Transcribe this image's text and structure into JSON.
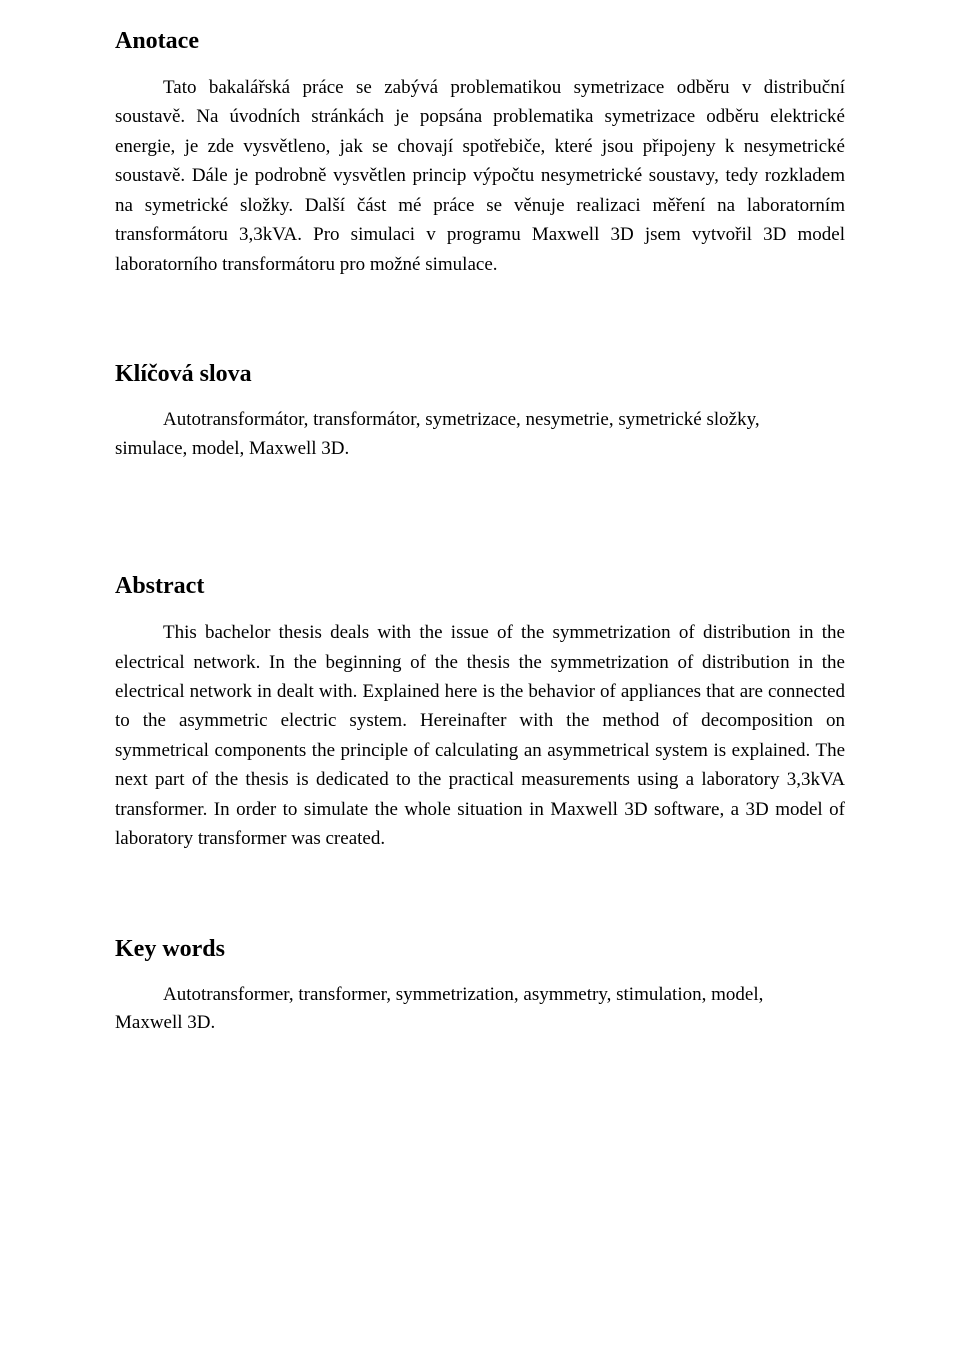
{
  "sections": {
    "anotace": {
      "heading": "Anotace",
      "paragraph": "Tato bakalářská práce se zabývá problematikou symetrizace odběru v distribuční soustavě. Na úvodních stránkách je popsána problematika symetrizace odběru elektrické energie, je zde vysvětleno, jak se chovají spotřebiče, které jsou připojeny k nesymetrické soustavě. Dále je podrobně vysvětlen princip výpočtu nesymetrické soustavy, tedy rozkladem na symetrické složky. Další část mé práce se věnuje realizaci měření na laboratorním transformátoru 3,3kVA. Pro simulaci v programu Maxwell 3D jsem vytvořil 3D model laboratorního transformátoru pro možné simulace."
    },
    "klicova": {
      "heading": "Klíčová slova",
      "line1": "Autotransformátor, transformátor, symetrizace, nesymetrie, symetrické složky,",
      "line2": "simulace, model, Maxwell 3D."
    },
    "abstract": {
      "heading": "Abstract",
      "paragraph": "This bachelor thesis deals with the issue of the symmetrization of distribution in the electrical network. In the beginning of the thesis the symmetrization of distribution in the electrical network in dealt with. Explained here is the behavior of appliances that are connected to the asymmetric electric system. Hereinafter with the method of decomposition on symmetrical components the principle of calculating an asymmetrical system is explained. The next part of the thesis is dedicated to the practical measurements using a laboratory 3,3kVA transformer. In order to simulate the whole situation in Maxwell 3D software, a 3D model of laboratory transformer was created."
    },
    "keywords": {
      "heading": "Key words",
      "line1": "Autotransformer, transformer, symmetrization, asymmetry, stimulation, model,",
      "line2": "Maxwell 3D."
    }
  }
}
